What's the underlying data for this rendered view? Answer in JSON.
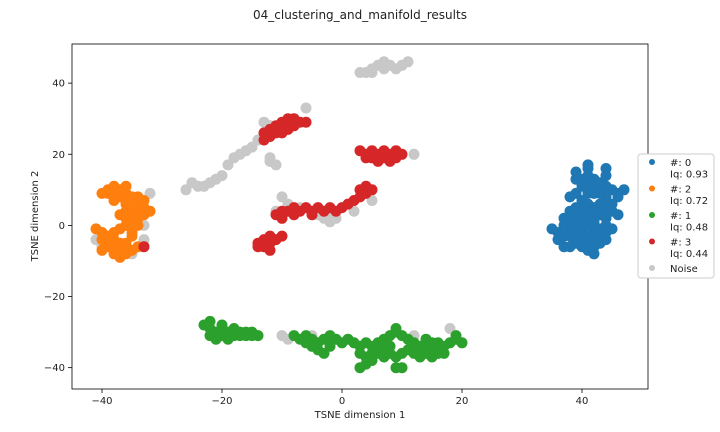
{
  "chart_data": {
    "type": "scatter",
    "title": "04_clustering_and_manifold_results",
    "xlabel": "TSNE dimension 1",
    "ylabel": "TSNE dimension 2",
    "xlim": [
      -45,
      51
    ],
    "ylim": [
      -46,
      51
    ],
    "xticks": [
      -40,
      -20,
      0,
      20,
      40
    ],
    "yticks": [
      -40,
      -20,
      0,
      20,
      40
    ],
    "grid": false,
    "legend_position": "right",
    "series": [
      {
        "name": "#: 0\nIq: 0.93",
        "color": "#1f77b4",
        "points": [
          [
            40,
            13
          ],
          [
            41,
            14
          ],
          [
            42,
            13
          ],
          [
            40,
            11
          ],
          [
            42,
            11
          ],
          [
            43,
            12
          ],
          [
            44,
            14
          ],
          [
            41,
            16
          ],
          [
            40,
            12
          ],
          [
            39,
            13
          ],
          [
            41,
            11
          ],
          [
            43,
            10
          ],
          [
            44,
            11
          ],
          [
            45,
            10
          ],
          [
            46,
            9
          ],
          [
            47,
            10
          ],
          [
            46,
            8
          ],
          [
            44,
            8
          ],
          [
            43,
            9
          ],
          [
            42,
            9
          ],
          [
            41,
            9
          ],
          [
            39,
            9
          ],
          [
            40,
            7
          ],
          [
            41,
            6
          ],
          [
            42,
            5
          ],
          [
            43,
            6
          ],
          [
            44,
            5
          ],
          [
            45,
            4
          ],
          [
            46,
            3
          ],
          [
            44,
            2
          ],
          [
            43,
            3
          ],
          [
            42,
            2
          ],
          [
            41,
            3
          ],
          [
            40,
            4
          ],
          [
            39,
            5
          ],
          [
            38,
            4
          ],
          [
            39,
            3
          ],
          [
            40,
            2
          ],
          [
            38,
            1
          ],
          [
            37,
            0
          ],
          [
            38,
            -1
          ],
          [
            39,
            -2
          ],
          [
            40,
            -1
          ],
          [
            41,
            0
          ],
          [
            42,
            1
          ],
          [
            43,
            -1
          ],
          [
            44,
            0
          ],
          [
            42,
            -2
          ],
          [
            41,
            -3
          ],
          [
            40,
            -4
          ],
          [
            39,
            -5
          ],
          [
            40,
            -6
          ],
          [
            41,
            -7
          ],
          [
            42,
            -6
          ],
          [
            43,
            -5
          ],
          [
            44,
            -4
          ],
          [
            42,
            -8
          ],
          [
            38,
            -6
          ],
          [
            37,
            -3
          ],
          [
            36,
            -2
          ],
          [
            35,
            -1
          ],
          [
            36,
            -4
          ],
          [
            37,
            -6
          ],
          [
            44,
            -2
          ],
          [
            45,
            -1
          ],
          [
            43,
            -3
          ],
          [
            39,
            15
          ],
          [
            41,
            17
          ],
          [
            44,
            16
          ],
          [
            37,
            2
          ],
          [
            38,
            8
          ],
          [
            42,
            4
          ],
          [
            41,
            -5
          ],
          [
            38,
            -3
          ],
          [
            40,
            0
          ],
          [
            39,
            1
          ],
          [
            43,
            4
          ],
          [
            45,
            6
          ],
          [
            39,
            -4
          ],
          [
            42,
            -4
          ]
        ]
      },
      {
        "name": "#: 2\nIq: 0.72",
        "color": "#ff7f0e",
        "points": [
          [
            -39,
            10
          ],
          [
            -38,
            11
          ],
          [
            -37,
            10
          ],
          [
            -36,
            9
          ],
          [
            -38,
            9
          ],
          [
            -39,
            9
          ],
          [
            -40,
            9
          ],
          [
            -37,
            8
          ],
          [
            -36,
            7
          ],
          [
            -35,
            8
          ],
          [
            -34,
            6
          ],
          [
            -33,
            5
          ],
          [
            -34,
            4
          ],
          [
            -35,
            5
          ],
          [
            -36,
            4
          ],
          [
            -35,
            3
          ],
          [
            -34,
            2
          ],
          [
            -33,
            3
          ],
          [
            -34,
            0
          ],
          [
            -35,
            1
          ],
          [
            -36,
            2
          ],
          [
            -36,
            0
          ],
          [
            -37,
            -1
          ],
          [
            -38,
            -2
          ],
          [
            -39,
            -3
          ],
          [
            -40,
            -2
          ],
          [
            -41,
            -1
          ],
          [
            -40,
            -4
          ],
          [
            -39,
            -5
          ],
          [
            -38,
            -6
          ],
          [
            -37,
            -7
          ],
          [
            -36,
            -8
          ],
          [
            -35,
            -7
          ],
          [
            -34,
            -6
          ],
          [
            -37,
            -5
          ],
          [
            -38,
            -4
          ],
          [
            -39,
            -6
          ],
          [
            -33,
            7
          ],
          [
            -34,
            8
          ],
          [
            -32,
            4
          ],
          [
            -36,
            6
          ],
          [
            -35,
            -3
          ],
          [
            -36,
            -5
          ],
          [
            -37,
            3
          ],
          [
            -38,
            7
          ],
          [
            -36,
            11
          ],
          [
            -35,
            -2
          ],
          [
            -37,
            -9
          ],
          [
            -40,
            -7
          ],
          [
            -38,
            -8
          ]
        ]
      },
      {
        "name": "#: 1\nIq: 0.48",
        "color": "#2ca02c",
        "points": [
          [
            -23,
            -28
          ],
          [
            -22,
            -29
          ],
          [
            -21,
            -30
          ],
          [
            -20,
            -29
          ],
          [
            -19,
            -30
          ],
          [
            -18,
            -29
          ],
          [
            -17,
            -30
          ],
          [
            -16,
            -31
          ],
          [
            -15,
            -31
          ],
          [
            -14,
            -31
          ],
          [
            -21,
            -32
          ],
          [
            -22,
            -31
          ],
          [
            -18,
            -31
          ],
          [
            -20,
            -31
          ],
          [
            -19,
            -32
          ],
          [
            -16,
            -30
          ],
          [
            -22,
            -27
          ],
          [
            -20,
            -28
          ],
          [
            -17,
            -31
          ],
          [
            -15,
            -30
          ],
          [
            -8,
            -31
          ],
          [
            -7,
            -32
          ],
          [
            -6,
            -31
          ],
          [
            -5,
            -32
          ],
          [
            -4,
            -33
          ],
          [
            -3,
            -32
          ],
          [
            -2,
            -31
          ],
          [
            -1,
            -32
          ],
          [
            0,
            -33
          ],
          [
            1,
            -32
          ],
          [
            2,
            -33
          ],
          [
            3,
            -34
          ],
          [
            4,
            -33
          ],
          [
            5,
            -34
          ],
          [
            6,
            -33
          ],
          [
            7,
            -32
          ],
          [
            8,
            -31
          ],
          [
            9,
            -30
          ],
          [
            10,
            -31
          ],
          [
            11,
            -32
          ],
          [
            12,
            -33
          ],
          [
            13,
            -34
          ],
          [
            14,
            -35
          ],
          [
            15,
            -34
          ],
          [
            16,
            -33
          ],
          [
            17,
            -34
          ],
          [
            18,
            -33
          ],
          [
            19,
            -32
          ],
          [
            20,
            -33
          ],
          [
            19,
            -31
          ],
          [
            -5,
            -34
          ],
          [
            -4,
            -35
          ],
          [
            -3,
            -36
          ],
          [
            -6,
            -33
          ],
          [
            -2,
            -34
          ],
          [
            3,
            -36
          ],
          [
            4,
            -37
          ],
          [
            5,
            -38
          ],
          [
            6,
            -36
          ],
          [
            7,
            -35
          ],
          [
            8,
            -36
          ],
          [
            9,
            -37
          ],
          [
            10,
            -36
          ],
          [
            11,
            -35
          ],
          [
            12,
            -36
          ],
          [
            13,
            -37
          ],
          [
            14,
            -36
          ],
          [
            15,
            -37
          ],
          [
            16,
            -36
          ],
          [
            9,
            -29
          ],
          [
            8,
            -34
          ],
          [
            7,
            -37
          ],
          [
            5,
            -36
          ],
          [
            4,
            -39
          ],
          [
            3,
            -40
          ],
          [
            9,
            -40
          ],
          [
            10,
            -40
          ],
          [
            15,
            -33
          ],
          [
            17,
            -36
          ],
          [
            14,
            -32
          ]
        ]
      },
      {
        "name": "#: 3\nIq: 0.44",
        "color": "#d62728",
        "points": [
          [
            -13,
            26
          ],
          [
            -12,
            27
          ],
          [
            -11,
            28
          ],
          [
            -10,
            29
          ],
          [
            -9,
            30
          ],
          [
            -8,
            30
          ],
          [
            -7,
            29
          ],
          [
            -6,
            29
          ],
          [
            -9,
            27
          ],
          [
            -12,
            25
          ],
          [
            -11,
            26
          ],
          [
            -8,
            28
          ],
          [
            -13,
            24
          ],
          [
            -10,
            26
          ],
          [
            3,
            21
          ],
          [
            4,
            20
          ],
          [
            5,
            19
          ],
          [
            6,
            20
          ],
          [
            7,
            21
          ],
          [
            8,
            20
          ],
          [
            9,
            19
          ],
          [
            10,
            20
          ],
          [
            5,
            21
          ],
          [
            6,
            18
          ],
          [
            8,
            18
          ],
          [
            7,
            19
          ],
          [
            4,
            19
          ],
          [
            9,
            21
          ],
          [
            -11,
            3
          ],
          [
            -10,
            4
          ],
          [
            -9,
            4
          ],
          [
            -8,
            3
          ],
          [
            -7,
            4
          ],
          [
            -6,
            5
          ],
          [
            -5,
            4
          ],
          [
            -4,
            5
          ],
          [
            -3,
            4
          ],
          [
            -2,
            5
          ],
          [
            -1,
            4
          ],
          [
            0,
            5
          ],
          [
            1,
            6
          ],
          [
            2,
            7
          ],
          [
            3,
            8
          ],
          [
            4,
            9
          ],
          [
            5,
            10
          ],
          [
            3,
            10
          ],
          [
            4,
            11
          ],
          [
            -10,
            2
          ],
          [
            -8,
            5
          ],
          [
            -5,
            3
          ],
          [
            -14,
            -5
          ],
          [
            -13,
            -6
          ],
          [
            -12,
            -5
          ],
          [
            -13,
            -4
          ],
          [
            -12,
            -3
          ],
          [
            -11,
            -4
          ],
          [
            -10,
            -3
          ],
          [
            -14,
            -6
          ],
          [
            -12,
            -7
          ],
          [
            -33,
            -6
          ]
        ]
      },
      {
        "name": "Noise",
        "color": "#c8c8c8",
        "points": [
          [
            -24,
            11
          ],
          [
            -23,
            11
          ],
          [
            -22,
            12
          ],
          [
            -21,
            13
          ],
          [
            -20,
            14
          ],
          [
            -19,
            17
          ],
          [
            -18,
            19
          ],
          [
            -17,
            20
          ],
          [
            -16,
            21
          ],
          [
            -15,
            22
          ],
          [
            -14,
            24
          ],
          [
            -13,
            25
          ],
          [
            -12,
            28
          ],
          [
            -8,
            30
          ],
          [
            -6,
            33
          ],
          [
            -13,
            29
          ],
          [
            -12,
            19
          ],
          [
            -11,
            17
          ],
          [
            -12,
            18
          ],
          [
            -10,
            8
          ],
          [
            -9,
            6
          ],
          [
            -7,
            5
          ],
          [
            -5,
            4
          ],
          [
            -4,
            3
          ],
          [
            -3,
            2
          ],
          [
            -2,
            3
          ],
          [
            -1,
            2
          ],
          [
            -2,
            1
          ],
          [
            2,
            4
          ],
          [
            5,
            7
          ],
          [
            -8,
            3
          ],
          [
            -11,
            4
          ],
          [
            -26,
            10
          ],
          [
            -25,
            12
          ],
          [
            4,
            43
          ],
          [
            5,
            44
          ],
          [
            6,
            45
          ],
          [
            7,
            46
          ],
          [
            8,
            45
          ],
          [
            9,
            44
          ],
          [
            10,
            45
          ],
          [
            11,
            46
          ],
          [
            5,
            43
          ],
          [
            3,
            43
          ],
          [
            7,
            44
          ],
          [
            12,
            20
          ],
          [
            -41,
            -4
          ],
          [
            -40,
            -6
          ],
          [
            -32,
            9
          ],
          [
            -33,
            -4
          ],
          [
            -39,
            -3
          ],
          [
            -35,
            -8
          ],
          [
            -33,
            0
          ],
          [
            -14,
            -31
          ],
          [
            -10,
            -31
          ],
          [
            -9,
            -32
          ],
          [
            -5,
            -31
          ],
          [
            -6,
            -32
          ],
          [
            18,
            -29
          ],
          [
            12,
            -31
          ]
        ]
      }
    ]
  }
}
